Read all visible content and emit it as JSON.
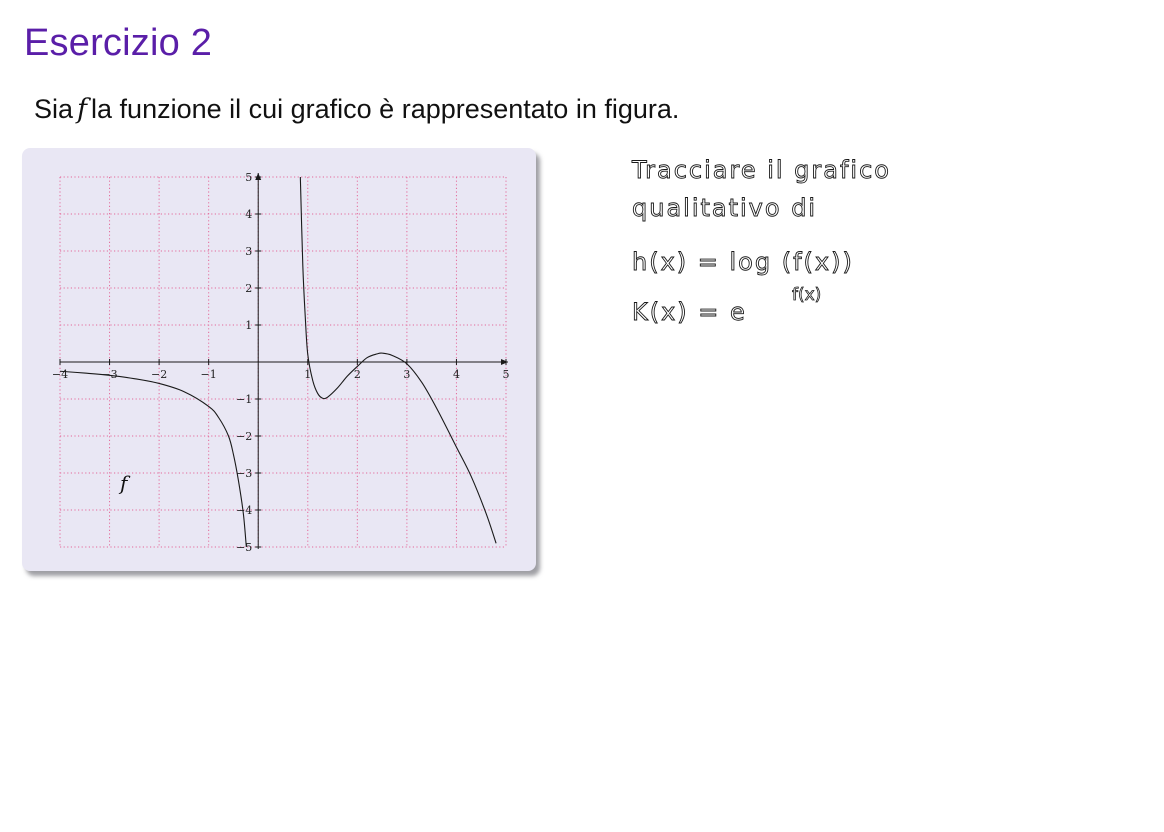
{
  "slide": {
    "title": "Esercizio 2",
    "intro_before": "Sia",
    "intro_var": "f",
    "intro_after": "la funzione il cui grafico è rappresentato in figura."
  },
  "chart_data": {
    "type": "line",
    "xlim": [
      -4,
      5
    ],
    "ylim": [
      -5,
      5
    ],
    "grid": true,
    "grid_style": "dotted",
    "grid_color": "#e46a9a",
    "axis_color": "#1a1a1a",
    "background": "#e9e7f4",
    "x_ticks": [
      -4,
      -3,
      -2,
      -1,
      1,
      2,
      3,
      4,
      5
    ],
    "y_ticks": [
      -5,
      -4,
      -3,
      -2,
      -1,
      1,
      2,
      3,
      4,
      5
    ],
    "x_tick_labels": [
      "−4",
      "−3",
      "−2",
      "−1",
      "1",
      "2",
      "3",
      "4",
      "5"
    ],
    "y_tick_labels": [
      "−5",
      "−4",
      "−3",
      "−2",
      "−1",
      "1",
      "2",
      "3",
      "4",
      "5"
    ],
    "curve_label": "f",
    "series": [
      {
        "points": [
          [
            -4,
            -0.25
          ],
          [
            -3.5,
            -0.3
          ],
          [
            -3,
            -0.36
          ],
          [
            -2.5,
            -0.45
          ],
          [
            -2,
            -0.58
          ],
          [
            -1.5,
            -0.8
          ],
          [
            -1,
            -1.2
          ],
          [
            -0.8,
            -1.5
          ],
          [
            -0.6,
            -2.0
          ],
          [
            -0.5,
            -2.5
          ],
          [
            -0.4,
            -3.2
          ],
          [
            -0.3,
            -4.1
          ],
          [
            -0.24,
            -5.0
          ]
        ]
      },
      {
        "points": [
          [
            0.85,
            5.0
          ],
          [
            0.9,
            2.6
          ],
          [
            0.95,
            1.2
          ],
          [
            1.0,
            0.2
          ],
          [
            1.1,
            -0.5
          ],
          [
            1.2,
            -0.85
          ],
          [
            1.3,
            -0.98
          ],
          [
            1.4,
            -0.95
          ],
          [
            1.6,
            -0.7
          ],
          [
            1.8,
            -0.38
          ],
          [
            2.0,
            -0.12
          ],
          [
            2.2,
            0.12
          ],
          [
            2.4,
            0.22
          ],
          [
            2.5,
            0.24
          ],
          [
            2.7,
            0.18
          ],
          [
            3.0,
            -0.05
          ],
          [
            3.3,
            -0.55
          ],
          [
            3.6,
            -1.25
          ],
          [
            4.0,
            -2.3
          ],
          [
            4.3,
            -3.1
          ],
          [
            4.6,
            -4.1
          ],
          [
            4.8,
            -4.9
          ]
        ]
      }
    ]
  },
  "handwritten_notes": {
    "line1": "Tracciare il grafico",
    "line2": "qualitativo di",
    "line3": "h(x) = log (f(x))",
    "line4": "K(x) =  e",
    "line4_sup": "f(x)"
  }
}
